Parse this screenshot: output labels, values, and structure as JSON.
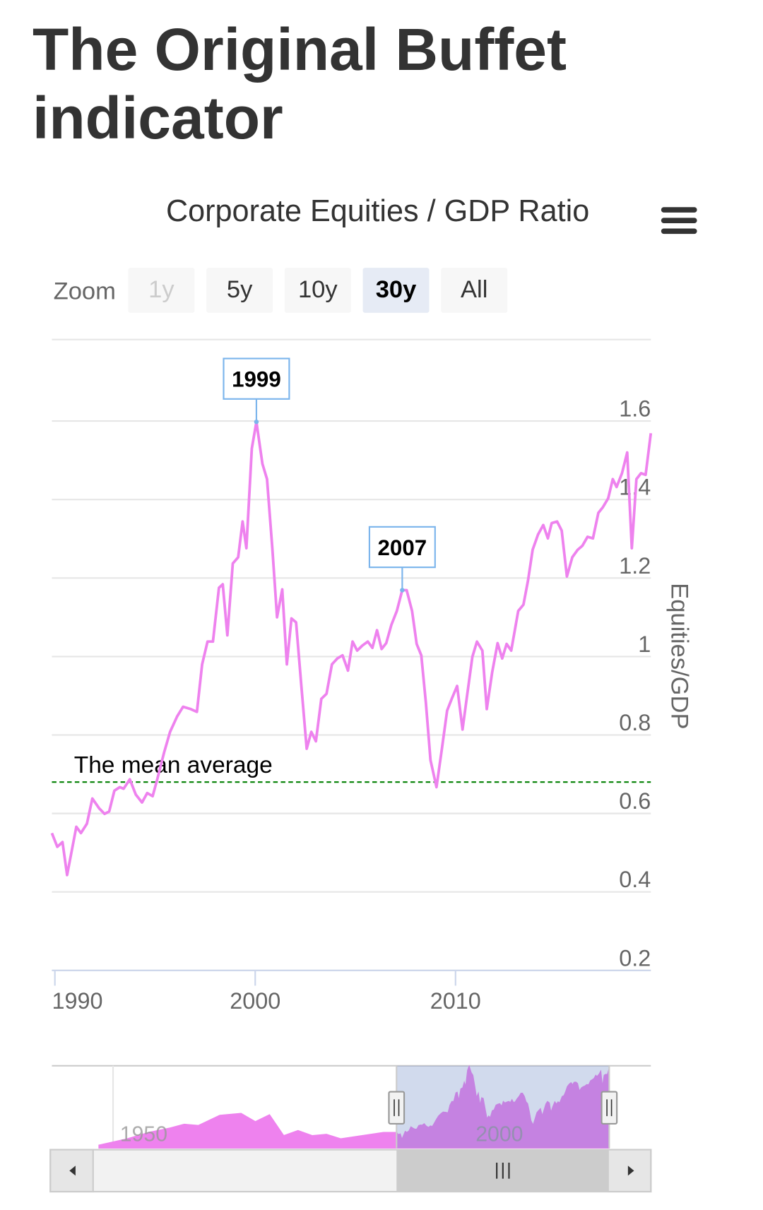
{
  "page_title": "The Original Buffet indicator",
  "zoom": {
    "label": "Zoom",
    "buttons": [
      "1y",
      "5y",
      "10y",
      "30y",
      "All"
    ],
    "selected": "30y",
    "disabled": [
      "1y"
    ]
  },
  "chart_data": {
    "type": "line",
    "title": "Corporate Equities / GDP Ratio",
    "y_axis_title": "Equities/GDP",
    "x": [
      1989.85,
      1990.12,
      1990.38,
      1990.61,
      1991.07,
      1991.3,
      1991.6,
      1991.87,
      1992.21,
      1992.48,
      1992.71,
      1992.97,
      1993.24,
      1993.43,
      1993.74,
      1994.04,
      1994.35,
      1994.61,
      1994.88,
      1995.11,
      1995.45,
      1995.75,
      1996.1,
      1996.4,
      1996.78,
      1997.09,
      1997.35,
      1997.62,
      1997.89,
      1998.19,
      1998.38,
      1998.61,
      1998.88,
      1999.15,
      1999.37,
      1999.56,
      1999.83,
      2000.06,
      2000.36,
      2000.59,
      2000.86,
      2001.09,
      2001.35,
      2001.58,
      2001.81,
      2002.04,
      2002.31,
      2002.57,
      2002.8,
      2003.03,
      2003.3,
      2003.56,
      2003.83,
      2004.1,
      2004.36,
      2004.63,
      2004.86,
      2005.09,
      2005.35,
      2005.62,
      2005.85,
      2006.08,
      2006.31,
      2006.54,
      2006.8,
      2007.07,
      2007.34,
      2007.56,
      2007.83,
      2008.06,
      2008.29,
      2008.52,
      2008.75,
      2009.05,
      2009.32,
      2009.58,
      2009.81,
      2010.08,
      2010.35,
      2010.57,
      2010.84,
      2011.07,
      2011.34,
      2011.56,
      2011.83,
      2012.1,
      2012.33,
      2012.55,
      2012.78,
      2013.13,
      2013.39,
      2013.62,
      2013.85,
      2014.12,
      2014.38,
      2014.61,
      2014.8,
      2015.07,
      2015.3,
      2015.56,
      2015.83,
      2016.1,
      2016.33,
      2016.59,
      2016.86,
      2017.13,
      2017.35,
      2017.62,
      2017.85,
      2018.04,
      2018.31,
      2018.57,
      2018.8,
      2019.03,
      2019.26,
      2019.49,
      2019.75
    ],
    "series": [
      {
        "name": "Equities/GDP",
        "color": "#ee82ee",
        "values": [
          0.55,
          0.515,
          0.527,
          0.443,
          0.566,
          0.55,
          0.574,
          0.638,
          0.613,
          0.599,
          0.605,
          0.658,
          0.667,
          0.663,
          0.687,
          0.648,
          0.628,
          0.652,
          0.644,
          0.687,
          0.755,
          0.808,
          0.847,
          0.872,
          0.866,
          0.859,
          0.98,
          1.038,
          1.038,
          1.175,
          1.184,
          1.054,
          1.237,
          1.253,
          1.344,
          1.276,
          1.53,
          1.598,
          1.491,
          1.452,
          1.272,
          1.1,
          1.171,
          0.98,
          1.097,
          1.087,
          0.921,
          0.765,
          0.808,
          0.784,
          0.892,
          0.905,
          0.98,
          0.995,
          1.003,
          0.964,
          1.038,
          1.015,
          1.028,
          1.038,
          1.022,
          1.067,
          1.019,
          1.034,
          1.081,
          1.116,
          1.169,
          1.169,
          1.116,
          1.032,
          1.003,
          0.882,
          0.736,
          0.667,
          0.765,
          0.862,
          0.892,
          0.925,
          0.814,
          0.898,
          0.999,
          1.038,
          1.015,
          0.866,
          0.96,
          1.034,
          0.995,
          1.032,
          1.015,
          1.116,
          1.132,
          1.194,
          1.272,
          1.311,
          1.335,
          1.301,
          1.34,
          1.344,
          1.321,
          1.204,
          1.253,
          1.272,
          1.282,
          1.305,
          1.301,
          1.366,
          1.38,
          1.403,
          1.452,
          1.432,
          1.467,
          1.52,
          1.276,
          1.452,
          1.467,
          1.463,
          1.569
        ]
      }
    ],
    "xlim": [
      1989.85,
      2019.75
    ],
    "xticks": [
      1990,
      2000,
      2010
    ],
    "ylim": [
      0.2,
      1.8
    ],
    "yticks": [
      0.2,
      0.4,
      0.6,
      0.8,
      1,
      1.2,
      1.4,
      1.6
    ],
    "grid": true,
    "annotations": [
      {
        "text": "1999",
        "x": 2000.06,
        "y": 1.598
      },
      {
        "text": "2007",
        "x": 2007.34,
        "y": 1.169
      }
    ],
    "mean_line": {
      "text": "The mean average",
      "y": 0.68,
      "color": "#008000"
    },
    "navigator": {
      "x": [
        1948,
        1952,
        1955,
        1958,
        1960,
        1962,
        1965,
        1968,
        1970,
        1972,
        1974,
        1976,
        1978,
        1980,
        1982,
        1985,
        1988,
        1989.85
      ],
      "values": [
        0.35,
        0.45,
        0.55,
        0.62,
        0.68,
        0.66,
        0.82,
        0.85,
        0.72,
        0.83,
        0.5,
        0.58,
        0.5,
        0.52,
        0.45,
        0.5,
        0.55,
        0.55
      ],
      "xlim": [
        1941.4,
        2025.6
      ],
      "ylim": [
        0.3,
        1.6
      ],
      "xticks": [
        1950,
        2000
      ]
    }
  }
}
